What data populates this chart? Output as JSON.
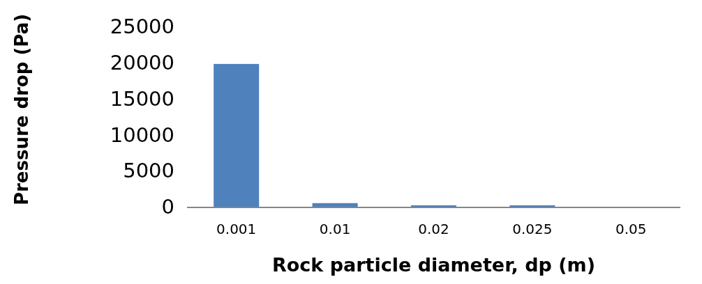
{
  "chart_data": {
    "type": "bar",
    "xlabel": "Rock particle diameter, dp (m)",
    "ylabel": "Pressure drop (Pa)",
    "categories": [
      "0.001",
      "0.01",
      "0.02",
      "0.025",
      "0.05"
    ],
    "values": [
      19800,
      500,
      200,
      200,
      0
    ],
    "color": "#4f81bd",
    "ylim": [
      0,
      25000
    ],
    "yticks": [
      0,
      5000,
      10000,
      15000,
      20000,
      25000
    ],
    "grid": false
  }
}
